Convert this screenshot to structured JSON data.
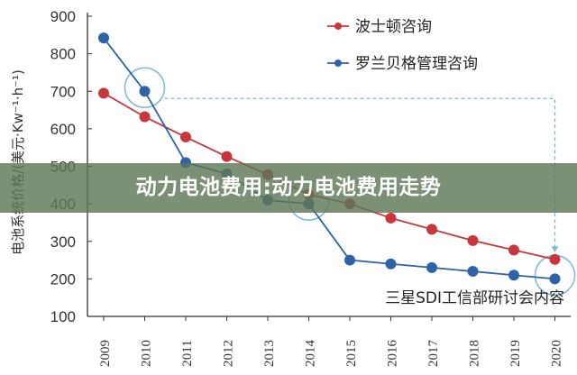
{
  "chart_data": {
    "type": "line",
    "title": "",
    "xlabel": "",
    "ylabel": "电池系统价格/(美元·Kw⁻¹·h⁻¹)",
    "categories": [
      "2009",
      "2010",
      "2011",
      "2012",
      "2013",
      "2014",
      "2015",
      "2016",
      "2017",
      "2018",
      "2019",
      "2020"
    ],
    "ylim": [
      100,
      900
    ],
    "yticks": [
      100,
      200,
      300,
      400,
      500,
      600,
      700,
      800,
      900
    ],
    "grid": false,
    "legend_position": "top-right",
    "source_note": "三星SDI工信部研讨会内容",
    "series": [
      {
        "name": "波士顿咨询",
        "color": "#c8363d",
        "values": [
          695,
          632,
          578,
          526,
          478,
          425,
          400,
          362,
          332,
          302,
          277,
          252
        ]
      },
      {
        "name": "罗兰贝格管理咨询",
        "color": "#2f62a8",
        "values": [
          842,
          700,
          510,
          480,
          410,
          400,
          250,
          240,
          230,
          220,
          210,
          200
        ]
      }
    ]
  },
  "banner": {
    "text": "动力电池费用:动力电池费用走势"
  },
  "colors": {
    "axis": "#333333",
    "highlight_circle": "#7fb8d6",
    "banner_bg": "#5f7858"
  }
}
